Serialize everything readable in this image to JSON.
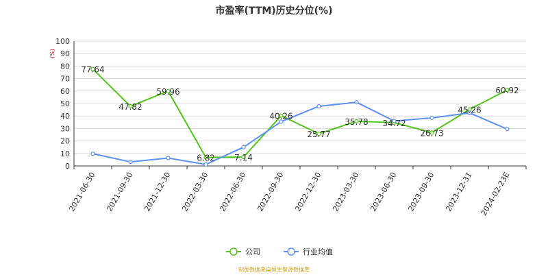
{
  "chart_data": {
    "type": "line",
    "title": "市盈率(TTM)历史分位(%)",
    "ylabel": "(%)",
    "ylim": [
      0,
      100
    ],
    "yticks": [
      0,
      10,
      20,
      30,
      40,
      50,
      60,
      70,
      80,
      90,
      100
    ],
    "grid": true,
    "legend_position": "bottom",
    "categories": [
      "2021-06-30",
      "2021-09-30",
      "2021-12-30",
      "2022-03-30",
      "2022-06-30",
      "2022-09-30",
      "2022-12-30",
      "2023-03-30",
      "2023-06-30",
      "2023-09-30",
      "2023-12-31",
      "2024-02-23E"
    ],
    "series": [
      {
        "name": "公司",
        "color": "#52c41a",
        "values": [
          77.64,
          47.82,
          59.96,
          6.82,
          7.14,
          40.26,
          25.77,
          35.78,
          34.72,
          26.73,
          45.26,
          60.92
        ],
        "labels": [
          "77.64",
          "47.82",
          "59.96",
          "6.82",
          "7.14",
          "40.26",
          "25.77",
          "35.78",
          "34.72",
          "26.73",
          "45.26",
          "60.92"
        ]
      },
      {
        "name": "行业均值",
        "color": "#5b8ff9",
        "values": [
          9.8,
          3.2,
          6.3,
          1.2,
          15.0,
          35.5,
          47.8,
          51.0,
          36.0,
          38.5,
          42.5,
          29.5
        ]
      }
    ]
  },
  "colors": {
    "axis": "#333333",
    "grid": "#dddddd",
    "ylabel": "#e60012",
    "source": "#d4a017"
  },
  "source_text": "制图数据来自恒生聚源数据库"
}
